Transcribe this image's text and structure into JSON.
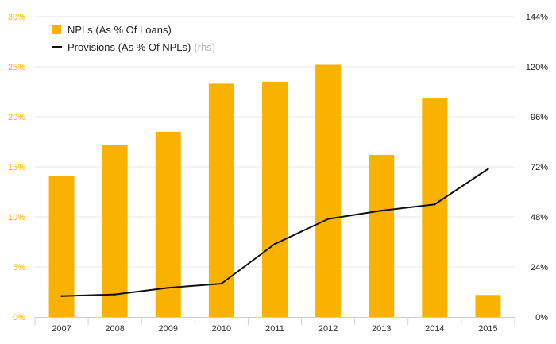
{
  "chart_data": {
    "type": "bar",
    "categories": [
      "2007",
      "2008",
      "2009",
      "2010",
      "2011",
      "2012",
      "2013",
      "2014",
      "2015"
    ],
    "series": [
      {
        "name": "NPLs (As % Of Loans)",
        "type": "bar",
        "axis": "left",
        "values": [
          14.1,
          17.2,
          18.5,
          23.3,
          23.5,
          25.2,
          16.2,
          21.9,
          2.2
        ]
      },
      {
        "name": "Provisions (As % Of NPLs)",
        "type": "line",
        "axis": "right",
        "values": [
          10,
          10.8,
          14,
          16,
          35,
          47,
          51,
          54,
          71
        ]
      }
    ],
    "y_left": {
      "min": 0,
      "max": 30,
      "ticks": [
        "0%",
        "5%",
        "10%",
        "15%",
        "20%",
        "25%",
        "30%"
      ]
    },
    "y_right": {
      "min": 0,
      "max": 144,
      "ticks": [
        "0%",
        "24%",
        "48%",
        "72%",
        "96%",
        "120%",
        "144%"
      ]
    },
    "legend": {
      "bar_label": "NPLs (As % Of Loans)",
      "line_label": "Provisions (As % Of NPLs)",
      "line_note": "(rhs)",
      "position": "top-left"
    },
    "colors": {
      "bar": "#f9b200",
      "line": "#111111",
      "left_axis_text": "#f9b200",
      "right_axis_text": "#222222",
      "grid": "#e6e6e6"
    }
  }
}
